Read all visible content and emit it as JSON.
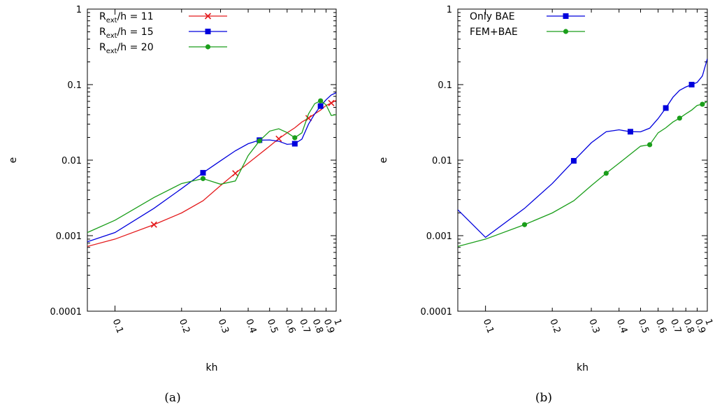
{
  "chart_data": [
    {
      "type": "line",
      "caption": "(a)",
      "xlabel": "kh",
      "ylabel": "e",
      "xscale": "log",
      "yscale": "log",
      "xlim": [
        0.075,
        1.0
      ],
      "ylim": [
        0.0001,
        1
      ],
      "xticks": [
        {
          "v": 0.1,
          "label": "0.1"
        },
        {
          "v": 0.2,
          "label": "0.2"
        },
        {
          "v": 0.3,
          "label": "0.3"
        },
        {
          "v": 0.4,
          "label": "0.4"
        },
        {
          "v": 0.5,
          "label": "0.5"
        },
        {
          "v": 0.6,
          "label": "0.6"
        },
        {
          "v": 0.7,
          "label": "0.7"
        },
        {
          "v": 0.8,
          "label": "0.8"
        },
        {
          "v": 0.9,
          "label": "0.9"
        },
        {
          "v": 1.0,
          "label": "1"
        }
      ],
      "yticks": [
        {
          "v": 0.0001,
          "label": "0.0001"
        },
        {
          "v": 0.001,
          "label": "0.001"
        },
        {
          "v": 0.01,
          "label": "0.01"
        },
        {
          "v": 0.1,
          "label": "0.1"
        },
        {
          "v": 1,
          "label": "1"
        }
      ],
      "legend_position": "top-left",
      "series": [
        {
          "name_main": "R",
          "name_sub": "ext",
          "name_rest": "/h = 11",
          "color": "#e41a1c",
          "marker": "cross",
          "x": [
            0.075,
            0.1,
            0.15,
            0.2,
            0.25,
            0.3,
            0.35,
            0.4,
            0.45,
            0.5,
            0.55,
            0.6,
            0.65,
            0.7,
            0.75,
            0.8,
            0.85,
            0.9,
            0.95,
            1.0
          ],
          "y": [
            0.00072,
            0.0009,
            0.0014,
            0.002,
            0.0029,
            0.0046,
            0.0067,
            0.0091,
            0.012,
            0.0153,
            0.0192,
            0.023,
            0.0268,
            0.032,
            0.036,
            0.041,
            0.046,
            0.053,
            0.057,
            0.062
          ],
          "marker_x": [
            0.15,
            0.35,
            0.55,
            0.75,
            0.95
          ]
        },
        {
          "name_main": "R",
          "name_sub": "ext",
          "name_rest": "/h = 15",
          "color": "#0000dd",
          "marker": "square",
          "x": [
            0.075,
            0.1,
            0.15,
            0.2,
            0.25,
            0.3,
            0.35,
            0.4,
            0.45,
            0.5,
            0.55,
            0.6,
            0.65,
            0.7,
            0.75,
            0.8,
            0.85,
            0.9,
            0.95,
            1.0
          ],
          "y": [
            0.00083,
            0.0011,
            0.0023,
            0.0042,
            0.0068,
            0.0098,
            0.0133,
            0.0165,
            0.0184,
            0.0185,
            0.0178,
            0.0162,
            0.0165,
            0.019,
            0.03,
            0.041,
            0.052,
            0.063,
            0.073,
            0.078
          ],
          "marker_x": [
            0.25,
            0.45,
            0.65,
            0.85
          ]
        },
        {
          "name_main": "R",
          "name_sub": "ext",
          "name_rest": "/h = 20",
          "color": "#1a9e1a",
          "marker": "circle",
          "x": [
            0.075,
            0.1,
            0.15,
            0.2,
            0.25,
            0.3,
            0.35,
            0.4,
            0.45,
            0.5,
            0.55,
            0.6,
            0.65,
            0.7,
            0.75,
            0.8,
            0.85,
            0.9,
            0.95,
            1.0
          ],
          "y": [
            0.0011,
            0.0016,
            0.0032,
            0.0049,
            0.0057,
            0.0048,
            0.0053,
            0.0115,
            0.018,
            0.0242,
            0.026,
            0.0232,
            0.0198,
            0.023,
            0.041,
            0.056,
            0.061,
            0.054,
            0.039,
            0.04
          ],
          "marker_x": [
            0.25,
            0.45,
            0.65,
            0.85
          ]
        }
      ]
    },
    {
      "type": "line",
      "caption": "(b)",
      "xlabel": "kh",
      "ylabel": "e",
      "xscale": "log",
      "yscale": "log",
      "xlim": [
        0.075,
        1.0
      ],
      "ylim": [
        0.0001,
        1
      ],
      "xticks": [
        {
          "v": 0.1,
          "label": "0.1"
        },
        {
          "v": 0.2,
          "label": "0.2"
        },
        {
          "v": 0.3,
          "label": "0.3"
        },
        {
          "v": 0.4,
          "label": "0.4"
        },
        {
          "v": 0.5,
          "label": "0.5"
        },
        {
          "v": 0.6,
          "label": "0.6"
        },
        {
          "v": 0.7,
          "label": "0.7"
        },
        {
          "v": 0.8,
          "label": "0.8"
        },
        {
          "v": 0.9,
          "label": "0.9"
        },
        {
          "v": 1.0,
          "label": "1"
        }
      ],
      "yticks": [
        {
          "v": 0.0001,
          "label": "0.0001"
        },
        {
          "v": 0.001,
          "label": "0.001"
        },
        {
          "v": 0.01,
          "label": "0.01"
        },
        {
          "v": 0.1,
          "label": "0.1"
        },
        {
          "v": 1,
          "label": "1"
        }
      ],
      "legend_position": "top-left",
      "series": [
        {
          "name_main": "Only BAE",
          "name_sub": "",
          "name_rest": "",
          "color": "#0000dd",
          "marker": "square",
          "x": [
            0.075,
            0.1,
            0.15,
            0.2,
            0.25,
            0.3,
            0.35,
            0.4,
            0.45,
            0.5,
            0.55,
            0.6,
            0.65,
            0.7,
            0.75,
            0.8,
            0.85,
            0.9,
            0.95,
            1.0
          ],
          "y": [
            0.0022,
            0.00095,
            0.0023,
            0.0049,
            0.0098,
            0.017,
            0.0238,
            0.0252,
            0.0238,
            0.0237,
            0.0265,
            0.0355,
            0.049,
            0.068,
            0.084,
            0.093,
            0.1,
            0.107,
            0.13,
            0.22
          ],
          "marker_x": [
            0.25,
            0.45,
            0.65,
            0.85
          ]
        },
        {
          "name_main": "FEM+BAE",
          "name_sub": "",
          "name_rest": "",
          "color": "#1a9e1a",
          "marker": "circle",
          "x": [
            0.075,
            0.1,
            0.15,
            0.2,
            0.25,
            0.3,
            0.35,
            0.4,
            0.45,
            0.5,
            0.55,
            0.6,
            0.65,
            0.7,
            0.75,
            0.8,
            0.85,
            0.9,
            0.95,
            1.0
          ],
          "y": [
            0.00072,
            0.0009,
            0.0014,
            0.002,
            0.0029,
            0.0046,
            0.0067,
            0.0091,
            0.012,
            0.0153,
            0.016,
            0.023,
            0.0268,
            0.032,
            0.036,
            0.041,
            0.046,
            0.053,
            0.055,
            0.06
          ],
          "marker_x": [
            0.15,
            0.35,
            0.55,
            0.75,
            0.95
          ]
        }
      ]
    }
  ]
}
